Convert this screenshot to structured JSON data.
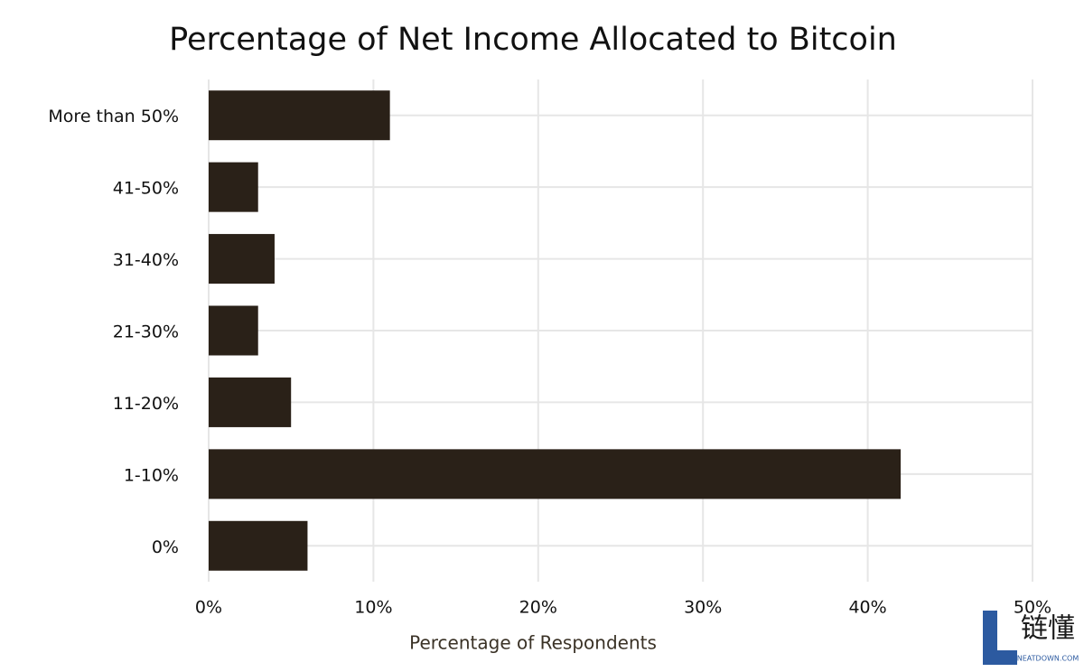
{
  "chart_data": {
    "type": "bar",
    "orientation": "horizontal",
    "title": "Percentage of Net Income Allocated to Bitcoin",
    "x_label": "Percentage of Respondents",
    "categories": [
      "More than 50%",
      "41-50%",
      "31-40%",
      "21-30%",
      "11-20%",
      "1-10%",
      "0%"
    ],
    "values": [
      11,
      3,
      4,
      3,
      5,
      42,
      6
    ],
    "color": "#2a2118",
    "xlim": [
      0,
      50
    ],
    "xticks": [
      {
        "value": 0,
        "label": "0%"
      },
      {
        "value": 10,
        "label": "10%"
      },
      {
        "value": 20,
        "label": "20%"
      },
      {
        "value": 30,
        "label": "30%"
      },
      {
        "value": 40,
        "label": "40%"
      },
      {
        "value": 50,
        "label": "50%"
      }
    ],
    "grid": true
  },
  "watermark": {
    "text": "链懂",
    "sub": "NEATDOWN.COM"
  }
}
